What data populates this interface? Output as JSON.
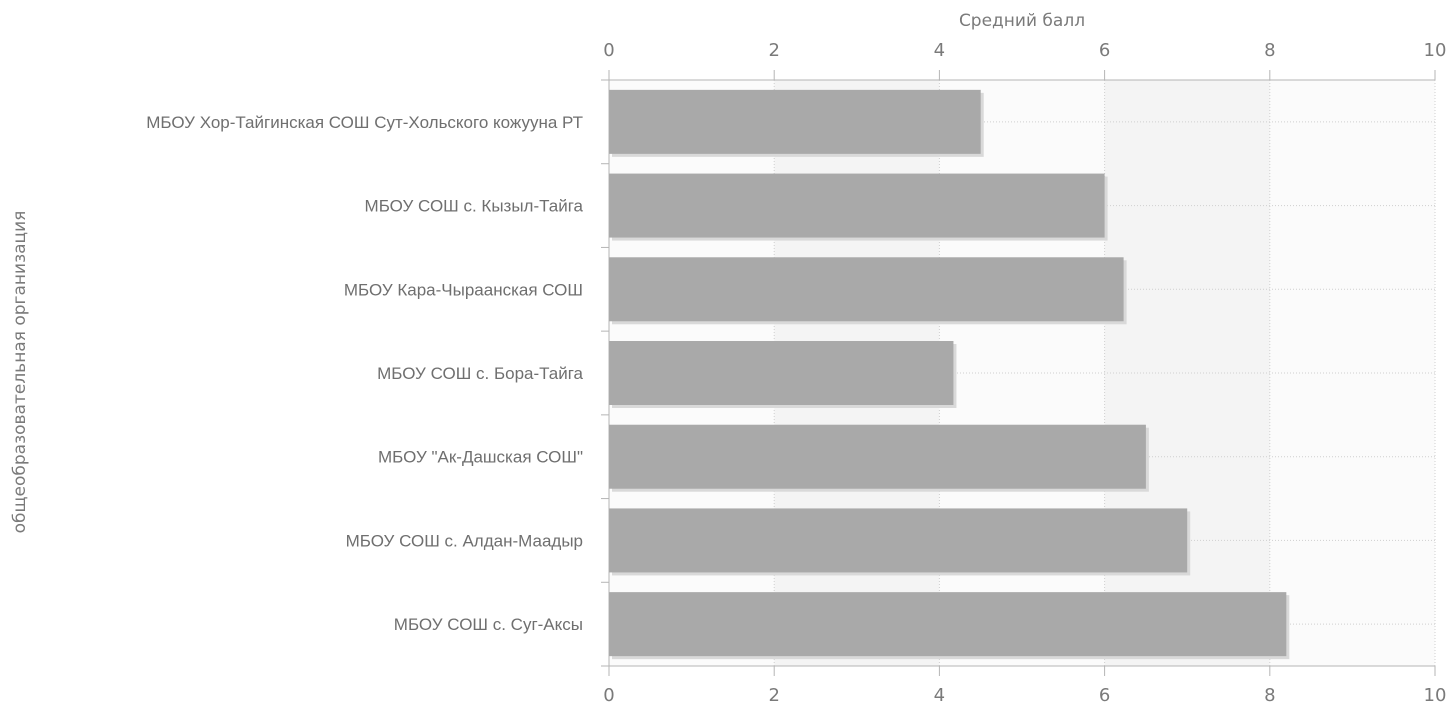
{
  "chart_data": {
    "type": "bar",
    "orientation": "horizontal",
    "xlabel": "Средний балл",
    "ylabel": "общеобразовательная организация",
    "xlim": [
      0,
      10
    ],
    "xticks": [
      0,
      2,
      4,
      6,
      8,
      10
    ],
    "categories": [
      "МБОУ Хор-Тайгинская СОШ Сут-Хольского кожууна РТ",
      "МБОУ СОШ с. Кызыл-Тайга",
      "МБОУ Кара-Чыраанская СОШ",
      "МБОУ СОШ с. Бора-Тайга",
      "МБОУ \"Ак-Дашская СОШ\"",
      "МБОУ СОШ с. Алдан-Маадыр",
      "МБОУ СОШ с. Суг-Аксы"
    ],
    "values": [
      4.5,
      6.0,
      6.23,
      4.17,
      6.5,
      7.0,
      8.2
    ],
    "grid": true,
    "bar_color": "#a9a9a9"
  }
}
